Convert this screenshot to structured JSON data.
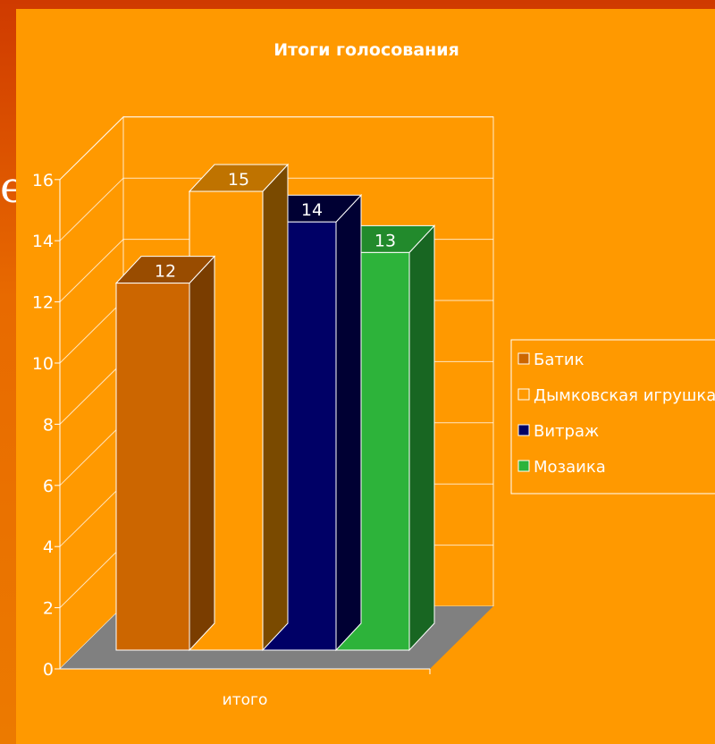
{
  "behind_text": "е",
  "chart_data": {
    "type": "bar",
    "title": "Итоги голосования",
    "categories": [
      "итого"
    ],
    "series": [
      {
        "name": "Батик",
        "value": 12,
        "color": "#cc6600",
        "top": "#994c00",
        "side": "#7a3d00"
      },
      {
        "name": "Дымковская игрушка",
        "value": 15,
        "color": "#ff9900",
        "top": "#bf7300",
        "side": "#7a4a00"
      },
      {
        "name": "Витраж",
        "value": 14,
        "color": "#000066",
        "top": "#000033",
        "side": "#000033"
      },
      {
        "name": "Мозаика",
        "value": 13,
        "color": "#2db33a",
        "top": "#228a2c",
        "side": "#186622"
      }
    ],
    "yticks": [
      0,
      2,
      4,
      6,
      8,
      10,
      12,
      14,
      16
    ],
    "ylim": [
      0,
      16
    ],
    "grid": true,
    "legend_position": "right",
    "floor_color": "#808080"
  }
}
